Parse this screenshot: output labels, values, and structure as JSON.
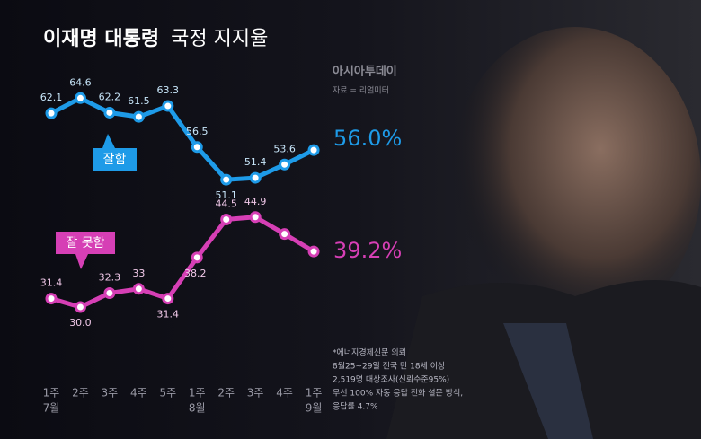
{
  "chart_data": {
    "type": "line",
    "title": [
      "이재명 대통령",
      "국정 지지율"
    ],
    "source": [
      "아시아투데이",
      "자료 = 리얼미터"
    ],
    "categories": [
      "1주",
      "2주",
      "3주",
      "4주",
      "5주",
      "1주",
      "2주",
      "3주",
      "4주",
      "1주"
    ],
    "months": [
      "7월",
      null,
      null,
      null,
      null,
      "8월",
      null,
      null,
      null,
      "9월"
    ],
    "series": [
      {
        "name": "잘함",
        "color": "#1e9be8",
        "values": [
          62.1,
          64.6,
          62.2,
          61.5,
          63.3,
          56.5,
          51.1,
          51.4,
          53.6,
          56.0
        ],
        "value_labels": [
          "62.1",
          "64.6",
          "62.2",
          "61.5",
          "63.3",
          "56.5",
          "51.1",
          "51.4",
          "53.6",
          "56.0%"
        ]
      },
      {
        "name": "잘 못함",
        "color": "#d63fb5",
        "values": [
          31.4,
          30.0,
          32.3,
          33,
          31.4,
          38.2,
          44.5,
          44.9,
          42.1,
          39.2
        ],
        "value_labels": [
          "31.4",
          "30.0",
          "32.3",
          "33",
          "31.4",
          "38.2",
          "44.5",
          "44.9",
          null,
          "39.2%"
        ]
      }
    ],
    "ylim": [
      25,
      70
    ],
    "notes": [
      "*에너지경제신문 의뢰",
      "8월25~29일 전국 만 18세 이상",
      "2,519명 대상조사(신뢰수준95%)",
      "무선 100% 자동 응답 전화 설문 방식,",
      "응답률 4.7%"
    ]
  }
}
